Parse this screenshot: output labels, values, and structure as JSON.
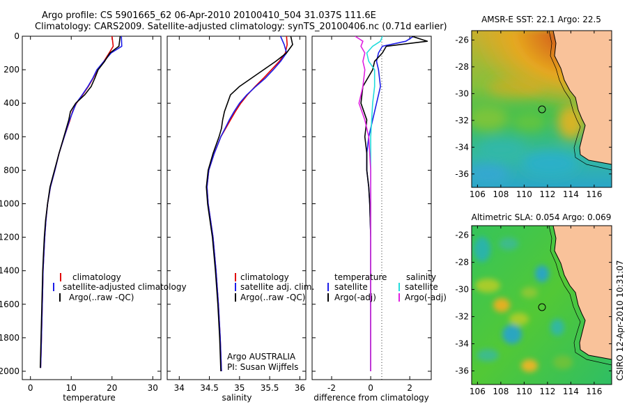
{
  "header": {
    "line1": "Argo profile: CS 5901665_62 06-Apr-2010 20100410_504 31.037S 111.6E",
    "line2": "Climatology: CARS2009. Satellite-adjusted climatology: synTS_20100406.nc (0.71d earlier)"
  },
  "credit": "CSIRO 12-Apr-2010 10:31:07",
  "colors": {
    "red": "#e00000",
    "blue": "#1c1ce8",
    "black": "#000000",
    "cyan": "#22dcdc",
    "magenta": "#e020e0",
    "land": "#f9c29a"
  },
  "chart_data": [
    {
      "type": "line",
      "name": "temperature-profile",
      "xlabel": "temperature",
      "xlim": [
        -2,
        32
      ],
      "ylim": [
        0,
        2050
      ],
      "xticks": [
        0,
        10,
        20,
        30
      ],
      "yticks": [
        0,
        200,
        400,
        600,
        800,
        1000,
        1200,
        1400,
        1600,
        1800,
        2000
      ],
      "depth": [
        0,
        60,
        100,
        150,
        200,
        250,
        300,
        350,
        400,
        450,
        500,
        600,
        700,
        800,
        900,
        1000,
        1100,
        1200,
        1300,
        1400,
        1500,
        1600,
        1700,
        1800,
        1900,
        1980
      ],
      "series": [
        {
          "name": "climatology",
          "color": "red",
          "values": [
            20.0,
            20.3,
            19.3,
            18.0,
            16.4,
            15.4,
            14.2,
            12.8,
            11.3,
            10.3,
            9.7,
            8.3,
            7.0,
            6.0,
            4.9,
            4.2,
            3.8,
            3.5,
            3.3,
            3.1,
            3.0,
            2.9,
            2.8,
            2.7,
            2.6,
            2.5
          ]
        },
        {
          "name": "satellite-adjusted climatology",
          "color": "blue",
          "values": [
            22.3,
            22.4,
            19.8,
            18.0,
            16.3,
            15.3,
            14.1,
            12.7,
            11.2,
            10.4,
            9.6,
            8.3,
            7.0,
            6.0,
            4.9,
            4.2,
            3.8,
            3.5,
            3.3,
            3.1,
            3.0,
            2.9,
            2.8,
            2.7,
            2.6,
            2.5
          ]
        },
        {
          "name": "Argo(..raw -QC)",
          "color": "black",
          "values": [
            22.0,
            21.7,
            19.5,
            18.2,
            16.6,
            15.8,
            14.9,
            13.3,
            11.1,
            9.8,
            9.4,
            8.2,
            7.0,
            5.9,
            4.8,
            4.2,
            3.7,
            3.4,
            3.2,
            3.0,
            2.9,
            2.8,
            2.7,
            2.6,
            2.5,
            2.4
          ]
        }
      ],
      "legend": [
        "climatology",
        "satellite-adjusted climatology",
        "Argo(..raw -QC)"
      ]
    },
    {
      "type": "line",
      "name": "salinity-profile",
      "xlabel": "salinity",
      "xlim": [
        33.8,
        36.1
      ],
      "ylim": [
        0,
        2050
      ],
      "xticks": [
        34,
        34.5,
        35,
        35.5,
        36
      ],
      "depth": [
        0,
        50,
        100,
        150,
        200,
        250,
        300,
        350,
        400,
        450,
        500,
        550,
        600,
        700,
        800,
        900,
        1000,
        1100,
        1200,
        1400,
        1600,
        1800,
        2000
      ],
      "series": [
        {
          "name": "climatology",
          "color": "red",
          "values": [
            35.78,
            35.79,
            35.76,
            35.66,
            35.53,
            35.4,
            35.26,
            35.13,
            35.02,
            34.93,
            34.85,
            34.77,
            34.69,
            34.58,
            34.49,
            34.46,
            34.48,
            34.52,
            34.56,
            34.61,
            34.65,
            34.68,
            34.7
          ]
        },
        {
          "name": "satellite adj. clim.",
          "color": "blue",
          "values": [
            35.68,
            35.74,
            35.78,
            35.68,
            35.56,
            35.43,
            35.27,
            35.12,
            35.0,
            34.91,
            34.83,
            34.76,
            34.69,
            34.58,
            34.49,
            34.46,
            34.48,
            34.52,
            34.56,
            34.61,
            34.65,
            34.68,
            34.7
          ]
        },
        {
          "name": "Argo(..raw -QC)",
          "color": "black",
          "values": [
            35.85,
            35.88,
            35.78,
            35.6,
            35.4,
            35.2,
            35.0,
            34.85,
            34.8,
            34.75,
            34.72,
            34.7,
            34.66,
            34.56,
            34.48,
            34.45,
            34.47,
            34.51,
            34.55,
            34.6,
            34.64,
            34.67,
            34.69
          ]
        }
      ],
      "legend": [
        "climatology",
        "satellite adj. clim.",
        "Argo(..raw -QC)"
      ],
      "annotations": [
        "Argo AUSTRALIA",
        "PI: Susan Wijffels"
      ]
    },
    {
      "type": "line",
      "name": "difference-profile",
      "xlabel": "difference from climatology",
      "xlim": [
        -3,
        3.1
      ],
      "ylim": [
        0,
        2050
      ],
      "xticks": [
        -2,
        0,
        2
      ],
      "depth": [
        0,
        30,
        60,
        100,
        150,
        200,
        300,
        400,
        500,
        600,
        700,
        800,
        900,
        1000,
        1200,
        1400,
        1600,
        1800,
        2000
      ],
      "series": [
        {
          "name": "temperature satellite",
          "color": "blue",
          "values": [
            2.2,
            1.8,
            0.6,
            0.4,
            0.3,
            0.4,
            0.5,
            0.3,
            0.1,
            -0.1,
            -0.2,
            -0.2,
            -0.1,
            -0.05,
            0.0,
            0.0,
            0.0,
            0.0,
            0.0
          ]
        },
        {
          "name": "temperature Argo(-adj)",
          "color": "black",
          "values": [
            2.1,
            2.9,
            0.8,
            0.6,
            0.2,
            0.1,
            -0.4,
            -0.5,
            -0.2,
            -0.3,
            -0.2,
            -0.2,
            -0.1,
            -0.05,
            0.0,
            0.0,
            0.0,
            0.0,
            0.0
          ]
        },
        {
          "name": "salinity satellite",
          "color": "cyan",
          "values": [
            0.6,
            0.5,
            0.1,
            -0.2,
            -0.1,
            0.2,
            0.2,
            0.1,
            0.05,
            0.0,
            0.0,
            0.0,
            0.0,
            0.0,
            0.0,
            0.0,
            0.0,
            0.0,
            0.0
          ]
        },
        {
          "name": "salinity Argo(-adj)",
          "color": "magenta",
          "values": [
            -0.8,
            -0.4,
            -0.5,
            -0.3,
            -0.4,
            -0.3,
            -0.4,
            -0.6,
            -0.3,
            -0.1,
            -0.05,
            0.0,
            0.0,
            0.0,
            0.0,
            0.0,
            0.0,
            0.0,
            0.0
          ]
        }
      ],
      "legend_headers": [
        "temperature",
        "salinity"
      ],
      "legend": [
        "satellite",
        "Argo(-adj)",
        "satellite",
        "Argo(-adj)"
      ]
    },
    {
      "type": "heatmap",
      "name": "sst-map",
      "title": "AMSR-E SST: 22.1 Argo: 22.5",
      "xlim": [
        105.5,
        117.5
      ],
      "ylim": [
        -37,
        -25.3
      ],
      "xticks": [
        106,
        108,
        110,
        112,
        114,
        116
      ],
      "yticks": [
        -26,
        -28,
        -30,
        -32,
        -34,
        -36
      ],
      "marker": {
        "lon": 111.6,
        "lat": -31.037
      }
    },
    {
      "type": "heatmap",
      "name": "sla-map",
      "title": "Altimetric SLA: 0.054 Argo: 0.069",
      "xlim": [
        105.5,
        117.5
      ],
      "ylim": [
        -37,
        -25.3
      ],
      "xticks": [
        106,
        108,
        110,
        112,
        114,
        116
      ],
      "yticks": [
        -26,
        -28,
        -30,
        -32,
        -34,
        -36
      ],
      "marker": {
        "lon": 111.6,
        "lat": -31.037
      }
    }
  ]
}
